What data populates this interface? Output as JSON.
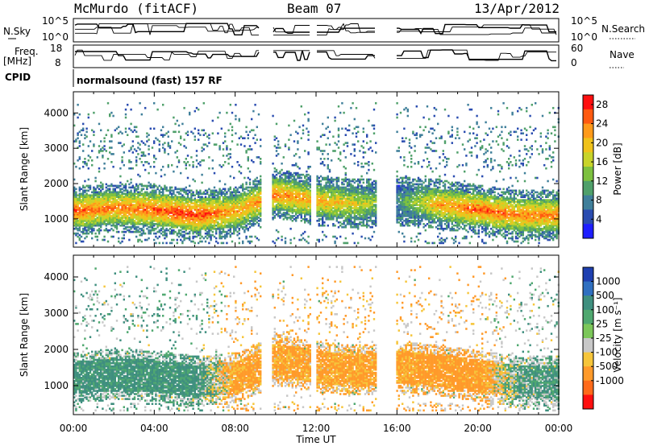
{
  "header": {
    "station": "McMurdo (fitACF)",
    "beam": "Beam 07",
    "date": "13/Apr/2012"
  },
  "top_panels": {
    "nsky_label": "N.Sky",
    "nsearch_label": "N.Search",
    "freq_label_line1": "Freq.",
    "freq_label_line2": "[MHz]",
    "nave_label": "Nave",
    "cpid_label": "CPID",
    "cpid_text": "normalsound (fast) 157 RF",
    "nsky_ticks": [
      "10^5",
      "10^0"
    ],
    "nsearch_ticks": [
      "10^5",
      "10^0"
    ],
    "freq_ticks": [
      "18",
      "8"
    ],
    "nave_ticks": [
      "60",
      "0"
    ]
  },
  "colors": {
    "power_scale": [
      "#1e1eff",
      "#2a4cb0",
      "#3f7f9a",
      "#4fa06a",
      "#7dc13f",
      "#c8d42a",
      "#f0c21a",
      "#ff9a1a",
      "#ff5a10",
      "#ff0f0f"
    ],
    "velocity_scale": [
      "#1e3fb0",
      "#2f6fc0",
      "#3f8f7f",
      "#4fa86f",
      "#7cc75a",
      "#c8c8c8",
      "#f6c53a",
      "#ff9a2a",
      "#ff6a1a",
      "#ff1010"
    ]
  },
  "chart_data": [
    {
      "type": "heatmap",
      "name": "power",
      "ylabel": "Slant Range [km]",
      "yticks": [
        "1000",
        "2000",
        "3000",
        "4000"
      ],
      "ylim": [
        200,
        4600
      ],
      "xlim_hours": [
        0,
        24
      ],
      "colorbar_label": "Power [dB]",
      "colorbar_ticks": [
        "4",
        "8",
        "12",
        "16",
        "20",
        "24",
        "28"
      ],
      "colorbar_range": [
        0,
        30
      ],
      "data_gaps_hours": [
        [
          9.25,
          9.8
        ],
        [
          11.7,
          12.0
        ],
        [
          14.95,
          15.9
        ]
      ],
      "main_band_km": [
        700,
        1900
      ],
      "x": [
        "00:00",
        "02:00",
        "04:00",
        "06:00",
        "08:00",
        "10:00",
        "12:00",
        "14:00",
        "16:00",
        "18:00",
        "20:00",
        "22:00"
      ],
      "band_center_km": [
        1200,
        1300,
        1250,
        1100,
        1200,
        1700,
        1500,
        1400,
        1500,
        1400,
        1250,
        1100
      ],
      "peak_power_db": [
        26,
        24,
        26,
        28,
        22,
        24,
        22,
        18,
        10,
        22,
        26,
        24
      ]
    },
    {
      "type": "heatmap",
      "name": "velocity",
      "ylabel": "Slant Range [km]",
      "yticks": [
        "1000",
        "2000",
        "3000",
        "4000"
      ],
      "ylim": [
        200,
        4600
      ],
      "xlim_hours": [
        0,
        24
      ],
      "xlabel": "Time UT",
      "xticks": [
        "00:00",
        "04:00",
        "08:00",
        "12:00",
        "16:00",
        "20:00",
        "00:00"
      ],
      "colorbar_label": "Velocity [m s⁻¹]",
      "colorbar_ticks": [
        "1000",
        "500",
        "100",
        "25",
        "-25",
        "-100",
        "-500",
        "-1000"
      ],
      "data_gaps_hours": [
        [
          9.25,
          9.8
        ],
        [
          11.7,
          12.0
        ],
        [
          14.95,
          15.9
        ]
      ],
      "x": [
        "00:00",
        "02:00",
        "04:00",
        "06:00",
        "08:00",
        "10:00",
        "12:00",
        "14:00",
        "16:00",
        "18:00",
        "20:00",
        "22:00"
      ],
      "dominant_velocity_ms": [
        150,
        150,
        150,
        150,
        -150,
        -150,
        -150,
        -150,
        -150,
        -200,
        -200,
        100
      ]
    }
  ]
}
